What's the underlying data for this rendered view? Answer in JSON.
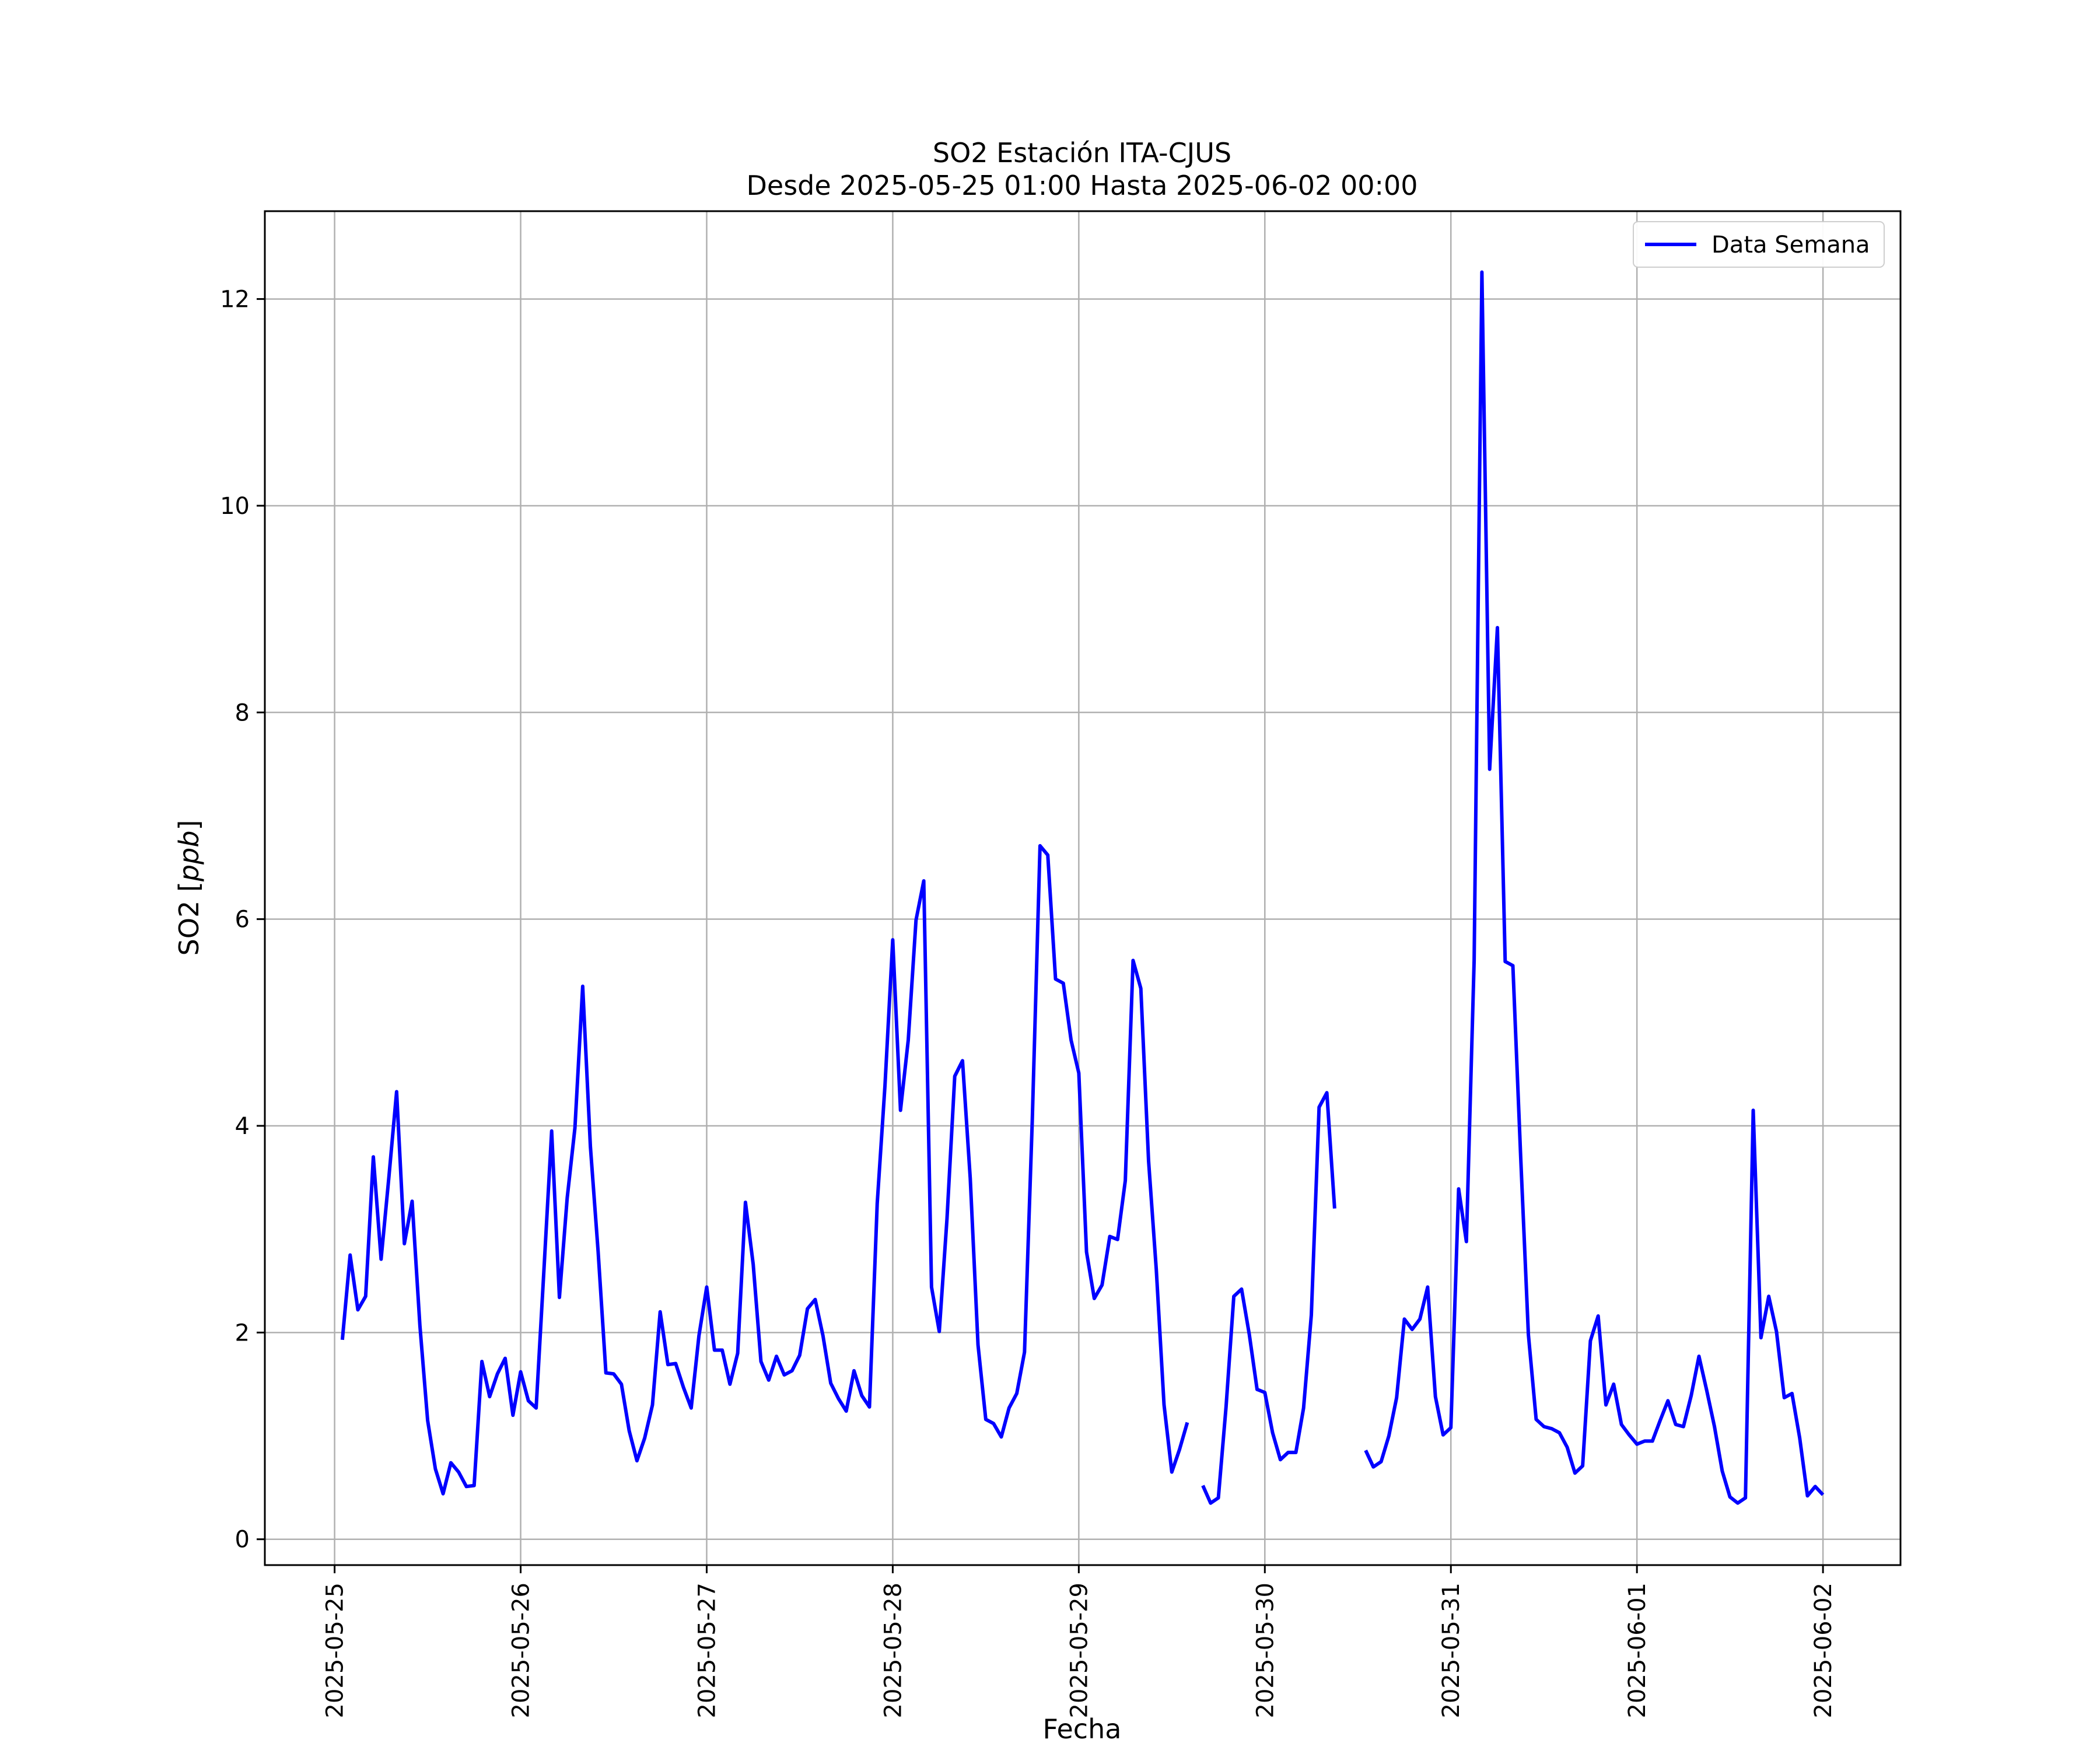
{
  "chart_data": {
    "type": "line",
    "title": "SO2 Estación ITA-CJUS",
    "subtitle": "Desde 2025-05-25 01:00 Hasta 2025-06-02 00:00",
    "xlabel": "Fecha",
    "ylabel_prefix": "SO2 [",
    "ylabel_unit": "ppb",
    "ylabel_suffix": "]",
    "x_start": "2025-05-25 01:00",
    "x_end": "2025-06-02 00:00",
    "x_interval": "1 hour",
    "xlim": [
      "2025-05-24 15:00",
      "2025-06-02 10:00"
    ],
    "ylim": [
      -0.25,
      12.85
    ],
    "x_ticks": [
      "2025-05-25",
      "2025-05-26",
      "2025-05-27",
      "2025-05-28",
      "2025-05-29",
      "2025-05-30",
      "2025-05-31",
      "2025-06-01",
      "2025-06-02"
    ],
    "y_ticks": [
      0,
      2,
      4,
      6,
      8,
      10,
      12
    ],
    "grid": true,
    "legend_position": "top-right",
    "line_color": "#0000ff",
    "series": [
      {
        "name": "Data Semana",
        "values": [
          1.93,
          2.75,
          2.22,
          2.35,
          3.7,
          2.71,
          3.5,
          4.33,
          2.86,
          3.27,
          2.07,
          1.15,
          0.68,
          0.44,
          0.74,
          0.65,
          0.51,
          0.52,
          1.72,
          1.38,
          1.6,
          1.75,
          1.2,
          1.62,
          1.34,
          1.27,
          2.6,
          3.95,
          2.34,
          3.3,
          3.98,
          5.35,
          3.8,
          2.78,
          1.61,
          1.6,
          1.5,
          1.05,
          0.76,
          0.98,
          1.3,
          2.2,
          1.69,
          1.7,
          1.47,
          1.27,
          1.97,
          2.44,
          1.83,
          1.83,
          1.5,
          1.8,
          3.26,
          2.66,
          1.72,
          1.54,
          1.77,
          1.59,
          1.63,
          1.78,
          2.23,
          2.32,
          1.97,
          1.51,
          1.36,
          1.24,
          1.63,
          1.39,
          1.28,
          3.25,
          4.39,
          5.8,
          4.15,
          4.83,
          5.99,
          6.37,
          2.44,
          2.01,
          3.1,
          4.48,
          4.63,
          3.49,
          1.88,
          1.16,
          1.12,
          0.99,
          1.27,
          1.41,
          1.81,
          4.05,
          6.71,
          6.62,
          5.42,
          5.38,
          4.83,
          4.51,
          2.78,
          2.33,
          2.46,
          2.93,
          2.9,
          3.47,
          5.6,
          5.33,
          3.66,
          2.61,
          1.3,
          0.65,
          0.87,
          1.13,
          null,
          0.52,
          0.35,
          0.4,
          1.28,
          2.35,
          2.42,
          1.98,
          1.45,
          1.42,
          1.03,
          0.77,
          0.84,
          0.84,
          1.27,
          2.17,
          4.18,
          4.32,
          3.2,
          null,
          null,
          null,
          0.86,
          0.7,
          0.75,
          1.0,
          1.37,
          2.13,
          2.03,
          2.13,
          2.44,
          1.38,
          1.01,
          1.08,
          3.39,
          2.88,
          5.6,
          12.26,
          7.45,
          8.82,
          5.59,
          5.55,
          3.71,
          1.98,
          1.16,
          1.09,
          1.07,
          1.03,
          0.89,
          0.64,
          0.71,
          1.92,
          2.16,
          1.3,
          1.5,
          1.11,
          1.01,
          0.92,
          0.95,
          0.95,
          1.15,
          1.34,
          1.11,
          1.09,
          1.39,
          1.77,
          1.44,
          1.09,
          0.66,
          0.41,
          0.35,
          0.4,
          4.15,
          1.95,
          2.35,
          2.01,
          1.37,
          1.41,
          0.98,
          0.42,
          0.51,
          0.43
        ]
      }
    ]
  }
}
